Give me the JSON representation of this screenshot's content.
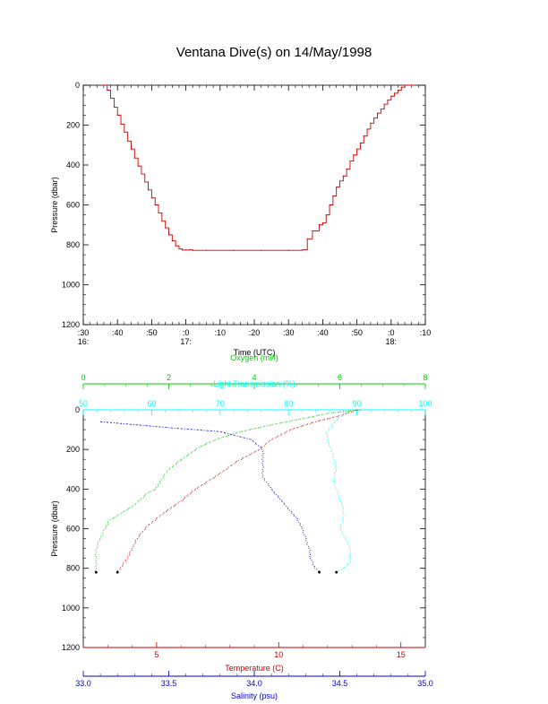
{
  "title": "Ventana Dive(s) on 14/May/1998",
  "chart_data": [
    {
      "type": "line",
      "title": "Ventana Dive(s) on 14/May/1998",
      "xlabel": "Time (UTC)",
      "ylabel": "Pressure (dbar)",
      "x_unit": "minutes after 16:30 UTC",
      "xlim": [
        0,
        100
      ],
      "ylim": [
        1200,
        0
      ],
      "x_ticks_top": [
        ":30",
        ":40",
        ":50",
        ":0",
        ":10",
        ":20",
        ":30",
        ":40",
        ":50",
        ":0",
        ":10"
      ],
      "x_ticks_values": [
        0,
        10,
        20,
        30,
        40,
        50,
        60,
        70,
        80,
        90,
        100
      ],
      "x_hour_labels": [
        {
          "x": 0,
          "label": "16:"
        },
        {
          "x": 30,
          "label": "17:"
        },
        {
          "x": 90,
          "label": "18:"
        }
      ],
      "y_ticks": [
        0,
        200,
        400,
        600,
        800,
        1000,
        1200
      ],
      "color": "#cc0000",
      "series": [
        {
          "name": "",
          "x": [
            5.5,
            7,
            8,
            9,
            10,
            11,
            12,
            13,
            14,
            15,
            16,
            17,
            18,
            19,
            20,
            21,
            22,
            23,
            24,
            25,
            26,
            27,
            28,
            29,
            30,
            31,
            32,
            36,
            44,
            52,
            60,
            64,
            65.5,
            67,
            69,
            70,
            71,
            72,
            73,
            74,
            75,
            76,
            77,
            78,
            79,
            80,
            81,
            82,
            83,
            84,
            85,
            86,
            87,
            88,
            89,
            90,
            91,
            92,
            93,
            94,
            95,
            96,
            97
          ],
          "y": [
            0,
            25,
            65,
            110,
            150,
            195,
            235,
            280,
            320,
            365,
            405,
            445,
            485,
            525,
            565,
            600,
            640,
            680,
            715,
            750,
            780,
            805,
            820,
            826,
            826,
            825,
            828,
            828,
            828,
            828,
            828,
            825,
            770,
            730,
            700,
            690,
            650,
            600,
            555,
            510,
            480,
            455,
            420,
            380,
            350,
            320,
            290,
            255,
            220,
            190,
            165,
            140,
            120,
            95,
            75,
            55,
            40,
            25,
            10,
            0,
            0,
            0,
            0
          ]
        }
      ]
    },
    {
      "type": "scatter",
      "ylabel": "Pressure (dbar)",
      "ylim": [
        1200,
        0
      ],
      "y_ticks": [
        0,
        200,
        400,
        600,
        800,
        1000,
        1200
      ],
      "axes": [
        {
          "label": "Oxygen (ml/l)",
          "color": "#00cc00",
          "position": "top",
          "range": [
            0,
            8
          ],
          "ticks": [
            0,
            2,
            4,
            6,
            8
          ]
        },
        {
          "label": "Light Transmission (%)",
          "color": "#00ffff",
          "position": "top",
          "range": [
            50,
            100
          ],
          "ticks": [
            50,
            60,
            70,
            80,
            90,
            100
          ]
        },
        {
          "label": "Temperature (C)",
          "color": "#cc0000",
          "position": "bottom",
          "range": [
            2,
            16
          ],
          "ticks": [
            5,
            10,
            15
          ]
        },
        {
          "label": "Salinity (psu)",
          "color": "#0000cc",
          "position": "bottom",
          "range": [
            33.0,
            35.0
          ],
          "ticks": [
            "33.0",
            "33.5",
            "34.0",
            "34.5",
            "35.0"
          ]
        }
      ],
      "series": [
        {
          "name": "Oxygen (ml/l)",
          "color": "#00cc00",
          "axis": 0,
          "x": [
            6.5,
            5.8,
            5.0,
            4.3,
            3.6,
            3.1,
            2.7,
            2.3,
            2.0,
            1.8,
            1.7,
            1.5,
            1.3,
            1.2,
            0.9,
            0.6,
            0.5,
            0.4,
            0.3,
            0.3,
            0.3
          ],
          "y": [
            0,
            15,
            50,
            80,
            115,
            150,
            190,
            250,
            300,
            360,
            400,
            420,
            460,
            480,
            520,
            560,
            600,
            650,
            700,
            770,
            820
          ]
        },
        {
          "name": "Light Transmission (%)",
          "color": "#00ffff",
          "axis": 1,
          "x": [
            89,
            87,
            85.5,
            86,
            86.5,
            87,
            86.5,
            87,
            87.5,
            88,
            88,
            87.5,
            88.5,
            89,
            89,
            88,
            87
          ],
          "y": [
            0,
            50,
            120,
            180,
            230,
            300,
            350,
            400,
            450,
            500,
            560,
            600,
            660,
            700,
            770,
            800,
            820
          ]
        },
        {
          "name": "Temperature (C)",
          "color": "#cc0000",
          "axis": 2,
          "x": [
            13.2,
            12.5,
            11.5,
            10.5,
            9.7,
            9.2,
            8.3,
            7.5,
            6.6,
            6.0,
            5.3,
            4.6,
            4.2,
            4.0,
            3.8,
            3.4
          ],
          "y": [
            0,
            30,
            60,
            100,
            150,
            200,
            260,
            330,
            400,
            460,
            520,
            590,
            650,
            700,
            750,
            820
          ]
        },
        {
          "name": "Salinity (psu)",
          "color": "#0000cc",
          "axis": 3,
          "x": [
            33.1,
            33.5,
            33.8,
            33.98,
            34.05,
            34.05,
            34.05,
            34.1,
            34.15,
            34.2,
            34.25,
            34.28,
            34.3,
            34.32,
            34.33,
            34.35,
            34.38
          ],
          "y": [
            60,
            90,
            110,
            150,
            200,
            260,
            340,
            400,
            450,
            500,
            550,
            600,
            650,
            700,
            750,
            790,
            820
          ]
        }
      ]
    }
  ]
}
